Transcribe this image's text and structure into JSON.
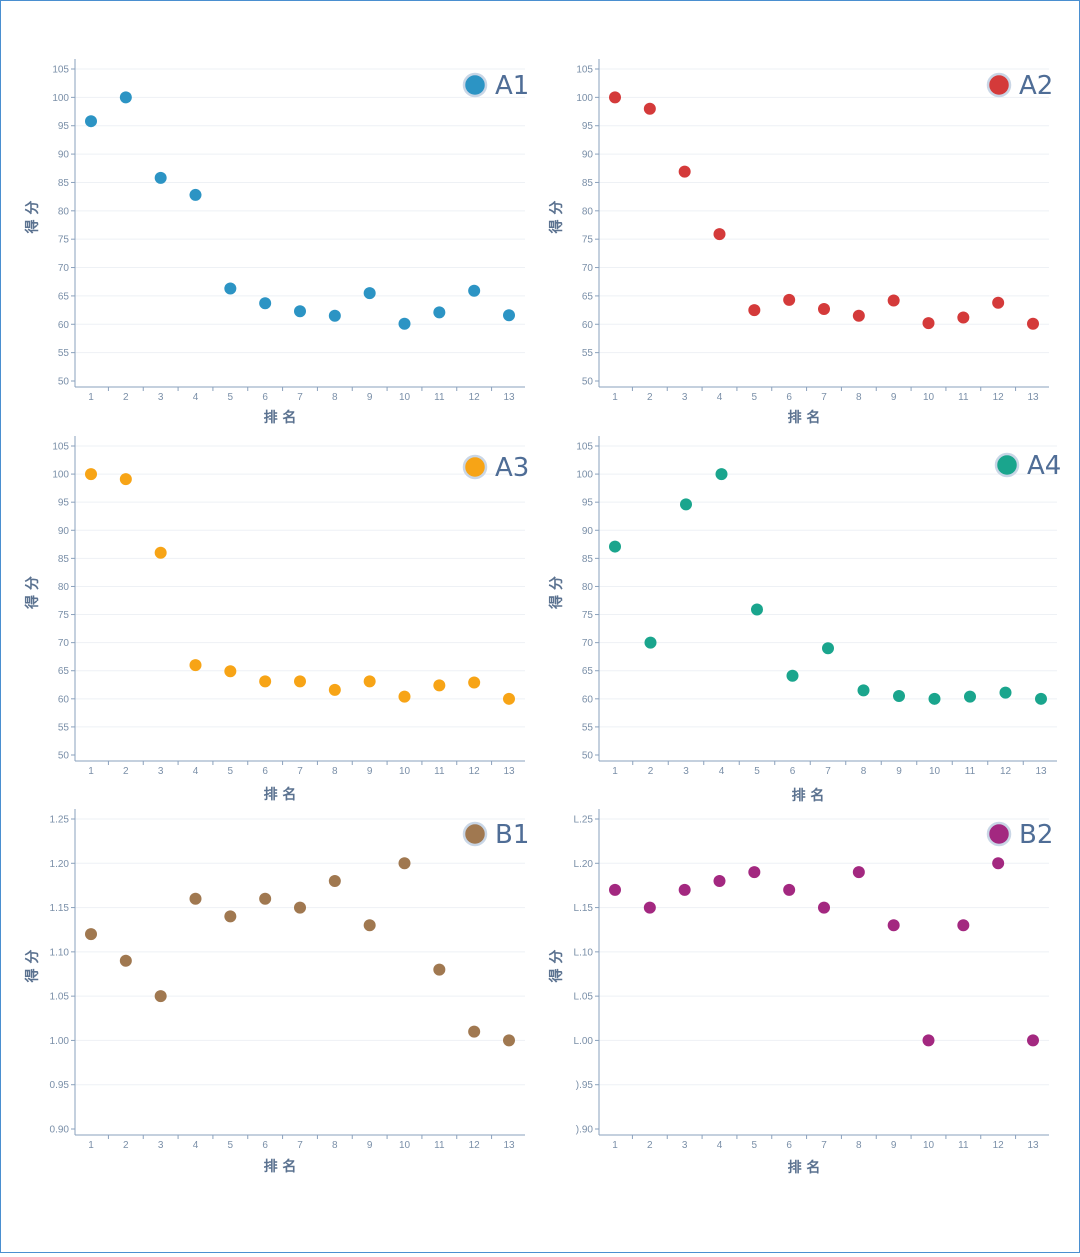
{
  "chart_data": [
    {
      "type": "scatter",
      "label": "A1",
      "color": "#2c94c4",
      "x": [
        1,
        2,
        3,
        4,
        5,
        6,
        7,
        8,
        9,
        10,
        11,
        12,
        13
      ],
      "y": [
        95.8,
        100,
        85.8,
        82.8,
        66.3,
        63.7,
        62.3,
        61.5,
        65.5,
        60.1,
        62.1,
        65.9,
        61.6
      ],
      "yticks": [
        "50",
        "55",
        "60",
        "65",
        "70",
        "75",
        "80",
        "85",
        "90",
        "95",
        "100",
        "105"
      ],
      "xticks": [
        "1",
        "2",
        "3",
        "4",
        "5",
        "6",
        "7",
        "8",
        "9",
        "10",
        "11",
        "12",
        "13"
      ],
      "ylim": [
        50,
        105
      ],
      "xlabel": "排 名",
      "ylabel": "得 分"
    },
    {
      "type": "scatter",
      "label": "A2",
      "color": "#d43a3a",
      "x": [
        1,
        2,
        3,
        4,
        5,
        6,
        7,
        8,
        9,
        10,
        11,
        12,
        13
      ],
      "y": [
        100,
        98,
        86.9,
        75.9,
        62.5,
        64.3,
        62.7,
        61.5,
        64.2,
        60.2,
        61.2,
        63.8,
        60.1
      ],
      "yticks": [
        "50",
        "55",
        "60",
        "65",
        "70",
        "75",
        "80",
        "85",
        "90",
        "95",
        "100",
        "105"
      ],
      "xticks": [
        "1",
        "2",
        "3",
        "4",
        "5",
        "6",
        "7",
        "8",
        "9",
        "10",
        "11",
        "12",
        "13"
      ],
      "ylim": [
        50,
        105
      ],
      "xlabel": "排 名",
      "ylabel": "得 分"
    },
    {
      "type": "scatter",
      "label": "A3",
      "color": "#f7a416",
      "x": [
        1,
        2,
        3,
        4,
        5,
        6,
        7,
        8,
        9,
        10,
        11,
        12,
        13
      ],
      "y": [
        100,
        99.1,
        86,
        66,
        64.9,
        63.1,
        63.1,
        61.6,
        63.1,
        60.4,
        62.4,
        62.9,
        60
      ],
      "yticks": [
        "50",
        "55",
        "60",
        "65",
        "70",
        "75",
        "80",
        "85",
        "90",
        "95",
        "100",
        "105"
      ],
      "xticks": [
        "1",
        "2",
        "3",
        "4",
        "5",
        "6",
        "7",
        "8",
        "9",
        "10",
        "11",
        "12",
        "13"
      ],
      "ylim": [
        50,
        105
      ],
      "xlabel": "排 名",
      "ylabel": "得 分"
    },
    {
      "type": "scatter",
      "label": "A4",
      "color": "#1aa58d",
      "x": [
        1,
        2,
        3,
        4,
        5,
        6,
        7,
        8,
        9,
        10,
        11,
        12,
        13
      ],
      "y": [
        87.1,
        70,
        94.6,
        100,
        75.9,
        64.1,
        69,
        61.5,
        60.5,
        60,
        60.4,
        61.1,
        60
      ],
      "yticks": [
        "50",
        "55",
        "60",
        "65",
        "70",
        "75",
        "80",
        "85",
        "90",
        "95",
        "100",
        "105"
      ],
      "xticks": [
        "1",
        "2",
        "3",
        "4",
        "5",
        "6",
        "7",
        "8",
        "9",
        "10",
        "11",
        "12",
        "13"
      ],
      "ylim": [
        50,
        105
      ],
      "xlabel": "排 名",
      "ylabel": "得 分"
    },
    {
      "type": "scatter",
      "label": "B1",
      "color": "#a07850",
      "x": [
        1,
        2,
        3,
        4,
        5,
        6,
        7,
        8,
        9,
        10,
        11,
        12,
        13
      ],
      "y": [
        1.12,
        1.09,
        1.05,
        1.16,
        1.14,
        1.16,
        1.15,
        1.18,
        1.13,
        1.2,
        1.08,
        1.01,
        1
      ],
      "yticks": [
        "0.90",
        "0.95",
        "1.00",
        "1.05",
        "1.10",
        "1.15",
        "1.20",
        "1.25"
      ],
      "xticks": [
        "1",
        "2",
        "3",
        "4",
        "5",
        "6",
        "7",
        "8",
        "9",
        "10",
        "11",
        "12",
        "13"
      ],
      "ylim": [
        0.9,
        1.25
      ],
      "xlabel": "排 名",
      "ylabel": "得 分"
    },
    {
      "type": "scatter",
      "label": "B2",
      "color": "#a32880",
      "x": [
        1,
        2,
        3,
        4,
        5,
        6,
        7,
        8,
        9,
        10,
        11,
        12,
        13
      ],
      "y": [
        1.17,
        1.15,
        1.17,
        1.18,
        1.19,
        1.17,
        1.15,
        1.19,
        1.13,
        1,
        1.13,
        1.2,
        1
      ],
      "yticks": [
        ").90",
        ").95",
        "L.00",
        "L.05",
        "L.10",
        "L.15",
        "L.20",
        "L.25"
      ],
      "xticks": [
        "1",
        "2",
        "3",
        "4",
        "5",
        "6",
        "7",
        "8",
        "9",
        "10",
        "11",
        "12",
        "13"
      ],
      "ylim": [
        0.9,
        1.25
      ],
      "xlabel": "排 名",
      "ylabel": "得 分"
    }
  ],
  "colors": {
    "legend_text": "#4f6d96",
    "axis": "#8aa1bc",
    "grid": "#eef1f5",
    "frame": "#4a8fd0"
  }
}
